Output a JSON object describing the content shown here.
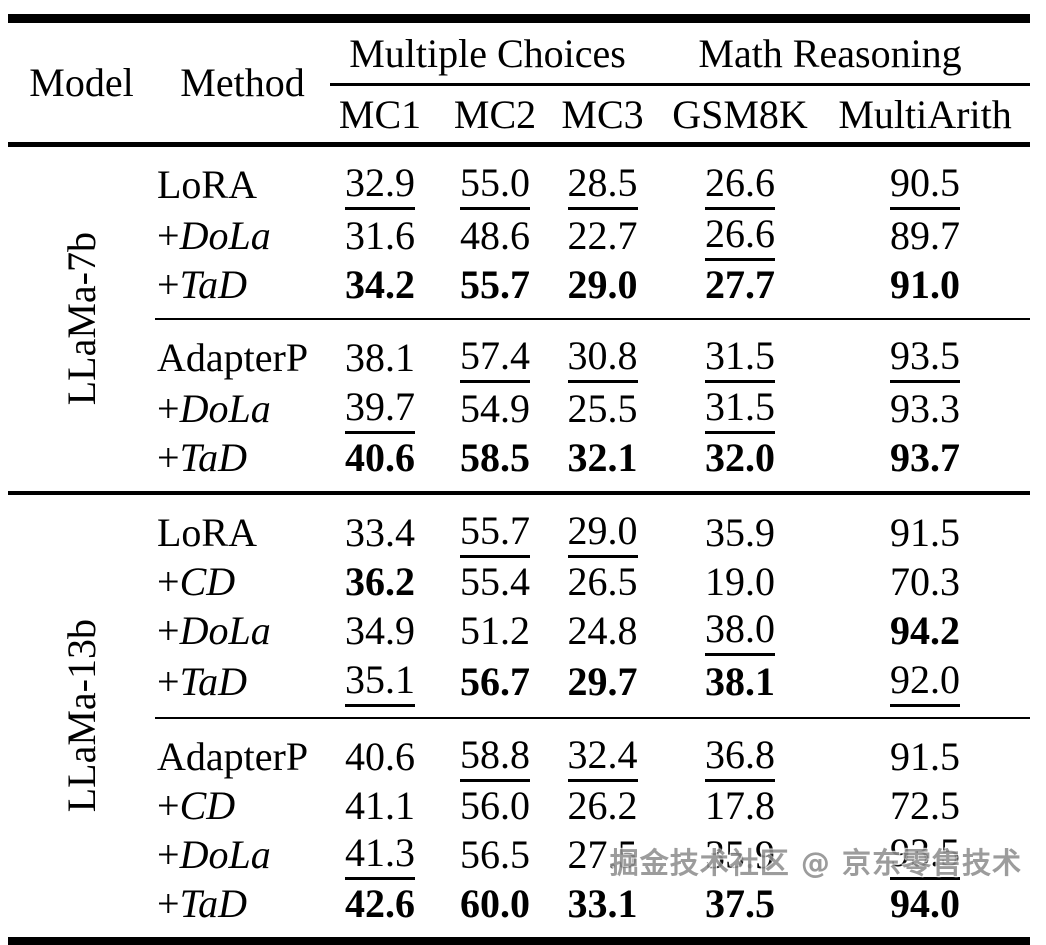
{
  "page": {
    "background": "#ffffff",
    "text_color": "#000000",
    "rule_color": "#000000"
  },
  "watermark": {
    "text": "掘金技术社区 @ 京东零售技术",
    "color": "#8f8f8f"
  },
  "table": {
    "header": {
      "model": "Model",
      "method": "Method",
      "groups": [
        {
          "label": "Multiple Choices",
          "span": 3
        },
        {
          "label": "Math Reasoning",
          "span": 2
        }
      ],
      "columns": [
        "MC1",
        "MC2",
        "MC3",
        "GSM8K",
        "MultiArith"
      ]
    },
    "sections": [
      {
        "model": "LLaMa-7b",
        "groups": [
          {
            "rows": [
              {
                "method": {
                  "prefix": "",
                  "name": "LoRA",
                  "italic": false
                },
                "cells": [
                  {
                    "value": "32.9",
                    "underline": true
                  },
                  {
                    "value": "55.0",
                    "underline": true
                  },
                  {
                    "value": "28.5",
                    "underline": true
                  },
                  {
                    "value": "26.6",
                    "underline": true
                  },
                  {
                    "value": "90.5",
                    "underline": true
                  }
                ]
              },
              {
                "method": {
                  "prefix": "+",
                  "name": "DoLa",
                  "italic": true
                },
                "cells": [
                  {
                    "value": "31.6"
                  },
                  {
                    "value": "48.6"
                  },
                  {
                    "value": "22.7"
                  },
                  {
                    "value": "26.6",
                    "underline": true
                  },
                  {
                    "value": "89.7"
                  }
                ]
              },
              {
                "method": {
                  "prefix": "+",
                  "name": "TaD",
                  "italic": true
                },
                "cells": [
                  {
                    "value": "34.2",
                    "bold": true
                  },
                  {
                    "value": "55.7",
                    "bold": true
                  },
                  {
                    "value": "29.0",
                    "bold": true
                  },
                  {
                    "value": "27.7",
                    "bold": true
                  },
                  {
                    "value": "91.0",
                    "bold": true
                  }
                ]
              }
            ]
          },
          {
            "rows": [
              {
                "method": {
                  "prefix": "",
                  "name": "AdapterP",
                  "italic": false
                },
                "cells": [
                  {
                    "value": "38.1"
                  },
                  {
                    "value": "57.4",
                    "underline": true
                  },
                  {
                    "value": "30.8",
                    "underline": true
                  },
                  {
                    "value": "31.5",
                    "underline": true
                  },
                  {
                    "value": "93.5",
                    "underline": true
                  }
                ]
              },
              {
                "method": {
                  "prefix": "+",
                  "name": "DoLa",
                  "italic": true
                },
                "cells": [
                  {
                    "value": "39.7",
                    "underline": true
                  },
                  {
                    "value": "54.9"
                  },
                  {
                    "value": "25.5"
                  },
                  {
                    "value": "31.5",
                    "underline": true
                  },
                  {
                    "value": "93.3"
                  }
                ]
              },
              {
                "method": {
                  "prefix": "+",
                  "name": "TaD",
                  "italic": true
                },
                "cells": [
                  {
                    "value": "40.6",
                    "bold": true
                  },
                  {
                    "value": "58.5",
                    "bold": true
                  },
                  {
                    "value": "32.1",
                    "bold": true
                  },
                  {
                    "value": "32.0",
                    "bold": true
                  },
                  {
                    "value": "93.7",
                    "bold": true
                  }
                ]
              }
            ]
          }
        ]
      },
      {
        "model": "LLaMa-13b",
        "groups": [
          {
            "rows": [
              {
                "method": {
                  "prefix": "",
                  "name": "LoRA",
                  "italic": false
                },
                "cells": [
                  {
                    "value": "33.4"
                  },
                  {
                    "value": "55.7",
                    "underline": true
                  },
                  {
                    "value": "29.0",
                    "underline": true
                  },
                  {
                    "value": "35.9"
                  },
                  {
                    "value": "91.5"
                  }
                ]
              },
              {
                "method": {
                  "prefix": "+",
                  "name": "CD",
                  "italic": true
                },
                "cells": [
                  {
                    "value": "36.2",
                    "bold": true
                  },
                  {
                    "value": "55.4"
                  },
                  {
                    "value": "26.5"
                  },
                  {
                    "value": "19.0"
                  },
                  {
                    "value": "70.3"
                  }
                ]
              },
              {
                "method": {
                  "prefix": "+",
                  "name": "DoLa",
                  "italic": true
                },
                "cells": [
                  {
                    "value": "34.9"
                  },
                  {
                    "value": "51.2"
                  },
                  {
                    "value": "24.8"
                  },
                  {
                    "value": "38.0",
                    "underline": true
                  },
                  {
                    "value": "94.2",
                    "bold": true
                  }
                ]
              },
              {
                "method": {
                  "prefix": "+",
                  "name": "TaD",
                  "italic": true
                },
                "cells": [
                  {
                    "value": "35.1",
                    "underline": true
                  },
                  {
                    "value": "56.7",
                    "bold": true
                  },
                  {
                    "value": "29.7",
                    "bold": true
                  },
                  {
                    "value": "38.1",
                    "bold": true
                  },
                  {
                    "value": "92.0",
                    "underline": true
                  }
                ]
              }
            ]
          },
          {
            "rows": [
              {
                "method": {
                  "prefix": "",
                  "name": "AdapterP",
                  "italic": false
                },
                "cells": [
                  {
                    "value": "40.6"
                  },
                  {
                    "value": "58.8",
                    "underline": true
                  },
                  {
                    "value": "32.4",
                    "underline": true
                  },
                  {
                    "value": "36.8",
                    "underline": true
                  },
                  {
                    "value": "91.5"
                  }
                ]
              },
              {
                "method": {
                  "prefix": "+",
                  "name": "CD",
                  "italic": true
                },
                "cells": [
                  {
                    "value": "41.1"
                  },
                  {
                    "value": "56.0"
                  },
                  {
                    "value": "26.2"
                  },
                  {
                    "value": "17.8"
                  },
                  {
                    "value": "72.5"
                  }
                ]
              },
              {
                "method": {
                  "prefix": "+",
                  "name": "DoLa",
                  "italic": true
                },
                "cells": [
                  {
                    "value": "41.3",
                    "underline": true
                  },
                  {
                    "value": "56.5"
                  },
                  {
                    "value": "27.5"
                  },
                  {
                    "value": "35.9"
                  },
                  {
                    "value": "93.5",
                    "underline": true
                  }
                ]
              },
              {
                "method": {
                  "prefix": "+",
                  "name": "TaD",
                  "italic": true
                },
                "cells": [
                  {
                    "value": "42.6",
                    "bold": true
                  },
                  {
                    "value": "60.0",
                    "bold": true
                  },
                  {
                    "value": "33.1",
                    "bold": true
                  },
                  {
                    "value": "37.5",
                    "bold": true
                  },
                  {
                    "value": "94.0",
                    "bold": true
                  }
                ]
              }
            ]
          }
        ]
      }
    ]
  }
}
